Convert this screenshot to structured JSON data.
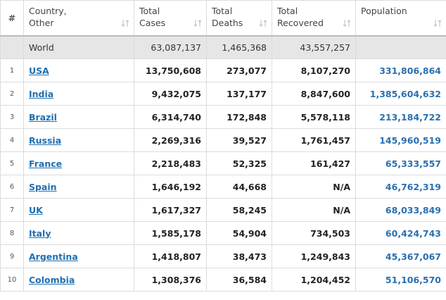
{
  "table": {
    "headers": [
      "#",
      "Country, Other",
      "Total Cases",
      "Total Deaths",
      "Total Recovered",
      "Population"
    ],
    "world": {
      "country": "World",
      "total_cases": "63,087,137",
      "total_deaths": "1,465,368",
      "total_recovered": "43,557,257"
    },
    "rows": [
      {
        "rank": "1",
        "country": "USA",
        "total_cases": "13,750,608",
        "total_deaths": "273,077",
        "total_recovered": "8,107,270",
        "population": "331,806,864"
      },
      {
        "rank": "2",
        "country": "India",
        "total_cases": "9,432,075",
        "total_deaths": "137,177",
        "total_recovered": "8,847,600",
        "population": "1,385,604,632"
      },
      {
        "rank": "3",
        "country": "Brazil",
        "total_cases": "6,314,740",
        "total_deaths": "172,848",
        "total_recovered": "5,578,118",
        "population": "213,184,722"
      },
      {
        "rank": "4",
        "country": "Russia",
        "total_cases": "2,269,316",
        "total_deaths": "39,527",
        "total_recovered": "1,761,457",
        "population": "145,960,519"
      },
      {
        "rank": "5",
        "country": "France",
        "total_cases": "2,218,483",
        "total_deaths": "52,325",
        "total_recovered": "161,427",
        "population": "65,333,557"
      },
      {
        "rank": "6",
        "country": "Spain",
        "total_cases": "1,646,192",
        "total_deaths": "44,668",
        "total_recovered": "N/A",
        "population": "46,762,319"
      },
      {
        "rank": "7",
        "country": "UK",
        "total_cases": "1,617,327",
        "total_deaths": "58,245",
        "total_recovered": "N/A",
        "population": "68,033,849"
      },
      {
        "rank": "8",
        "country": "Italy",
        "total_cases": "1,585,178",
        "total_deaths": "54,904",
        "total_recovered": "734,503",
        "population": "60,424,743"
      },
      {
        "rank": "9",
        "country": "Argentina",
        "total_cases": "1,418,807",
        "total_deaths": "38,473",
        "total_recovered": "1,249,843",
        "population": "45,367,067"
      },
      {
        "rank": "10",
        "country": "Colombia",
        "total_cases": "1,308,376",
        "total_deaths": "36,584",
        "total_recovered": "1,204,452",
        "population": "51,106,570"
      }
    ]
  }
}
